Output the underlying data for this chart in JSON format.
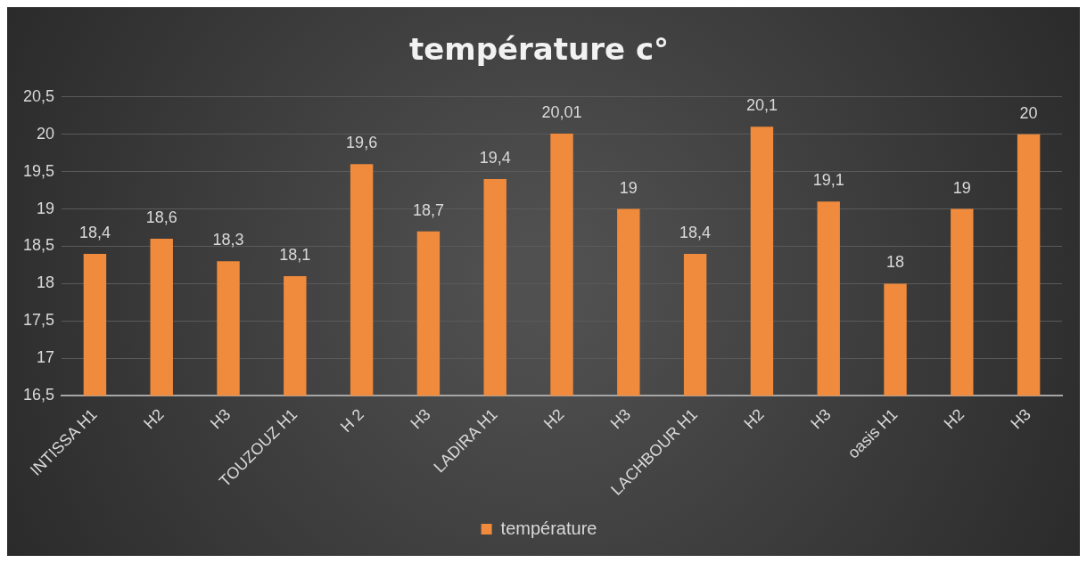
{
  "chart_data": {
    "type": "bar",
    "title": "température c°",
    "categories": [
      "INTISSA H1",
      "H2",
      "H3",
      "TOUZOUZ H1",
      "H 2",
      "H3",
      "LADIRA H1",
      "H2",
      "H3",
      "LACHBOUR H1",
      "H2",
      "H3",
      "oasis H1",
      "H2",
      "H3"
    ],
    "series": [
      {
        "name": "température",
        "color": "#f08a3c",
        "values": [
          18.4,
          18.6,
          18.3,
          18.1,
          19.6,
          18.7,
          19.4,
          20.01,
          19,
          18.4,
          20.1,
          19.1,
          18,
          19,
          20
        ],
        "value_labels": [
          "18,4",
          "18,6",
          "18,3",
          "18,1",
          "19,6",
          "18,7",
          "19,4",
          "20,01",
          "19",
          "18,4",
          "20,1",
          "19,1",
          "18",
          "19",
          "20"
        ]
      }
    ],
    "ylim": [
      16.5,
      20.5
    ],
    "yticks": [
      {
        "value": 16.5,
        "label": "16,5"
      },
      17,
      {
        "value": 17.5,
        "label": "17,5"
      },
      18,
      {
        "value": 18.5,
        "label": "18,5"
      },
      19,
      {
        "value": 19.5,
        "label": "19,5"
      },
      20,
      {
        "value": 20.5,
        "label": "20,5"
      }
    ],
    "grid": "y",
    "legend": "bottom"
  }
}
